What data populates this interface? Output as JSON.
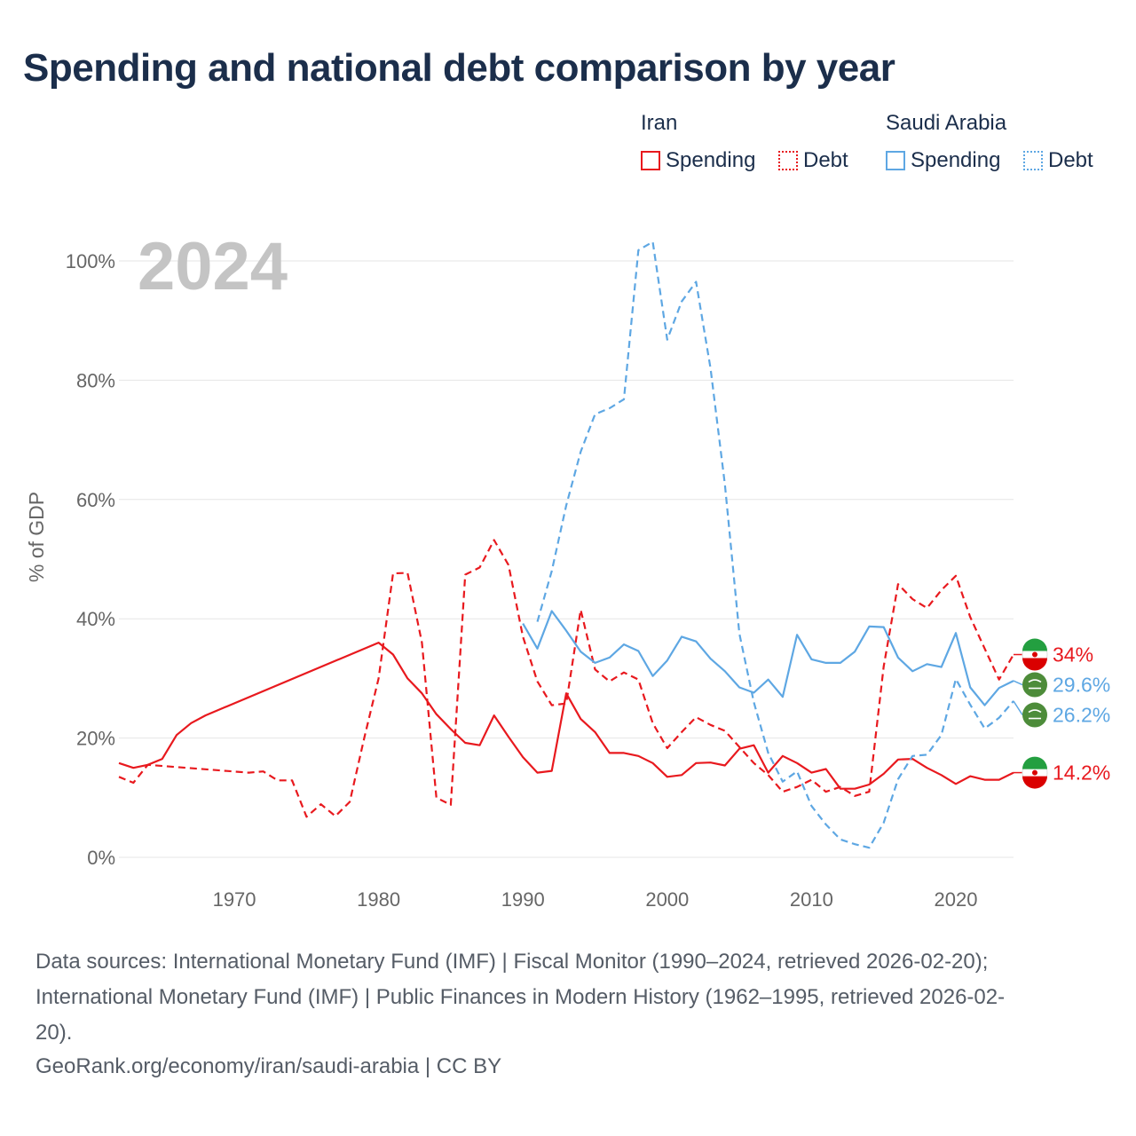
{
  "title": "Spending and national debt comparison by year",
  "legend": {
    "groups": [
      {
        "name": "Iran",
        "items": [
          {
            "label": "Spending",
            "style": "solid",
            "color": "#e8191e"
          },
          {
            "label": "Debt",
            "style": "dotted",
            "color": "#e8191e"
          }
        ]
      },
      {
        "name": "Saudi Arabia",
        "items": [
          {
            "label": "Spending",
            "style": "solid",
            "color": "#5ea7e3"
          },
          {
            "label": "Debt",
            "style": "dotted",
            "color": "#5ea7e3"
          }
        ]
      }
    ]
  },
  "year_watermark": "2024",
  "footer": {
    "line1": "Data sources: International Monetary Fund (IMF) | Fiscal Monitor (1990–2024, retrieved 2026-02-20);",
    "line2": "International Monetary Fund (IMF) | Public Finances in Modern History (1962–1995, retrieved 2026-02-",
    "line3": "20).",
    "line4": "GeoRank.org/economy/iran/saudi-arabia | CC BY"
  },
  "colors": {
    "iran": "#e8191e",
    "saudi": "#5ea7e3",
    "grid": "#e6e6e6",
    "axis_text": "#666666",
    "watermark": "#c4c4c4"
  },
  "chart_data": {
    "type": "line",
    "title": "Spending and national debt comparison by year",
    "xlabel": "",
    "ylabel": "% of GDP",
    "xlim": [
      1962,
      2024
    ],
    "ylim": [
      0,
      105
    ],
    "x_ticks": [
      1970,
      1980,
      1990,
      2000,
      2010,
      2020
    ],
    "x_tick_labels": [
      "1970",
      "1980",
      "1990",
      "2000",
      "2010",
      "2020"
    ],
    "y_ticks": [
      0,
      20,
      40,
      60,
      80,
      100
    ],
    "y_tick_labels": [
      "0%",
      "20%",
      "40%",
      "60%",
      "80%",
      "100%"
    ],
    "series": [
      {
        "name": "Iran Spending",
        "country": "Iran",
        "metric": "Spending",
        "color": "#e8191e",
        "dash": "solid",
        "end_label": "14.2%",
        "points": [
          [
            1962,
            15.8
          ],
          [
            1963,
            15.0
          ],
          [
            1964,
            15.5
          ],
          [
            1965,
            16.5
          ],
          [
            1966,
            20.5
          ],
          [
            1967,
            22.5
          ],
          [
            1968,
            23.8
          ],
          [
            1980,
            36.0
          ],
          [
            1981,
            34.0
          ],
          [
            1982,
            30.0
          ],
          [
            1983,
            27.5
          ],
          [
            1984,
            24.0
          ],
          [
            1985,
            21.5
          ],
          [
            1986,
            19.2
          ],
          [
            1987,
            18.8
          ],
          [
            1988,
            23.8
          ],
          [
            1989,
            20.2
          ],
          [
            1990,
            16.8
          ],
          [
            1991,
            14.2
          ],
          [
            1992,
            14.5
          ],
          [
            1993,
            27.5
          ],
          [
            1994,
            23.2
          ],
          [
            1995,
            21.0
          ],
          [
            1996,
            17.5
          ],
          [
            1997,
            17.5
          ],
          [
            1998,
            17.0
          ],
          [
            1999,
            15.8
          ],
          [
            2000,
            13.5
          ],
          [
            2001,
            13.8
          ],
          [
            2002,
            15.8
          ],
          [
            2003,
            15.9
          ],
          [
            2004,
            15.4
          ],
          [
            2005,
            18.2
          ],
          [
            2006,
            18.8
          ],
          [
            2007,
            14.2
          ],
          [
            2008,
            17.0
          ],
          [
            2009,
            15.8
          ],
          [
            2010,
            14.2
          ],
          [
            2011,
            14.8
          ],
          [
            2012,
            11.5
          ],
          [
            2013,
            11.5
          ],
          [
            2014,
            12.2
          ],
          [
            2015,
            14.0
          ],
          [
            2016,
            16.4
          ],
          [
            2017,
            16.5
          ],
          [
            2018,
            15.0
          ],
          [
            2019,
            13.8
          ],
          [
            2020,
            12.3
          ],
          [
            2021,
            13.6
          ],
          [
            2022,
            13.0
          ],
          [
            2023,
            13.0
          ],
          [
            2024,
            14.2
          ]
        ]
      },
      {
        "name": "Iran Debt",
        "country": "Iran",
        "metric": "Debt",
        "color": "#e8191e",
        "dash": "dashed",
        "end_label": "34%",
        "points": [
          [
            1962,
            13.5
          ],
          [
            1963,
            12.5
          ],
          [
            1964,
            15.5
          ],
          [
            1971,
            14.2
          ],
          [
            1972,
            14.4
          ],
          [
            1973,
            12.9
          ],
          [
            1974,
            12.9
          ],
          [
            1975,
            6.8
          ],
          [
            1976,
            8.9
          ],
          [
            1977,
            6.9
          ],
          [
            1978,
            9.3
          ],
          [
            1979,
            20.0
          ],
          [
            1980,
            30.0
          ],
          [
            1981,
            47.6
          ],
          [
            1982,
            47.7
          ],
          [
            1983,
            36.0
          ],
          [
            1984,
            10.0
          ],
          [
            1985,
            8.8
          ],
          [
            1986,
            47.4
          ],
          [
            1987,
            48.6
          ],
          [
            1988,
            53.2
          ],
          [
            1989,
            49.0
          ],
          [
            1990,
            37.0
          ],
          [
            1991,
            29.5
          ],
          [
            1992,
            25.5
          ],
          [
            1993,
            25.8
          ],
          [
            1994,
            41.5
          ],
          [
            1995,
            31.5
          ],
          [
            1996,
            29.5
          ],
          [
            1997,
            31.0
          ],
          [
            1998,
            29.8
          ],
          [
            1999,
            22.5
          ],
          [
            2000,
            18.3
          ],
          [
            2001,
            21.0
          ],
          [
            2002,
            23.5
          ],
          [
            2003,
            22.2
          ],
          [
            2004,
            21.2
          ],
          [
            2005,
            18.5
          ],
          [
            2006,
            15.8
          ],
          [
            2007,
            13.8
          ],
          [
            2008,
            11.0
          ],
          [
            2009,
            11.8
          ],
          [
            2010,
            13.0
          ],
          [
            2011,
            11.0
          ],
          [
            2012,
            11.8
          ],
          [
            2013,
            10.3
          ],
          [
            2014,
            11.0
          ],
          [
            2015,
            32.0
          ],
          [
            2016,
            45.8
          ],
          [
            2017,
            43.3
          ],
          [
            2018,
            41.8
          ],
          [
            2019,
            44.8
          ],
          [
            2020,
            47.2
          ],
          [
            2021,
            40.3
          ],
          [
            2022,
            35.0
          ],
          [
            2023,
            29.8
          ],
          [
            2024,
            34.0
          ]
        ]
      },
      {
        "name": "Saudi Arabia Spending",
        "country": "Saudi Arabia",
        "metric": "Spending",
        "color": "#5ea7e3",
        "dash": "solid",
        "end_label": "29.6%",
        "points": [
          [
            1990,
            39.2
          ],
          [
            1991,
            35.0
          ],
          [
            1992,
            41.3
          ],
          [
            1993,
            38.0
          ],
          [
            1994,
            34.5
          ],
          [
            1995,
            32.6
          ],
          [
            1996,
            33.5
          ],
          [
            1997,
            35.7
          ],
          [
            1998,
            34.6
          ],
          [
            1999,
            30.4
          ],
          [
            2000,
            33.0
          ],
          [
            2001,
            37.0
          ],
          [
            2002,
            36.2
          ],
          [
            2003,
            33.3
          ],
          [
            2004,
            31.2
          ],
          [
            2005,
            28.5
          ],
          [
            2006,
            27.6
          ],
          [
            2007,
            29.8
          ],
          [
            2008,
            26.9
          ],
          [
            2009,
            37.3
          ],
          [
            2010,
            33.2
          ],
          [
            2011,
            32.6
          ],
          [
            2012,
            32.6
          ],
          [
            2013,
            34.5
          ],
          [
            2014,
            38.7
          ],
          [
            2015,
            38.6
          ],
          [
            2016,
            33.5
          ],
          [
            2017,
            31.2
          ],
          [
            2018,
            32.4
          ],
          [
            2019,
            31.9
          ],
          [
            2020,
            37.6
          ],
          [
            2021,
            28.5
          ],
          [
            2022,
            25.5
          ],
          [
            2023,
            28.4
          ],
          [
            2024,
            29.6
          ]
        ]
      },
      {
        "name": "Saudi Arabia Debt",
        "country": "Saudi Arabia",
        "metric": "Debt",
        "color": "#5ea7e3",
        "dash": "dashed",
        "end_label": "26.2%",
        "points": [
          [
            1991,
            39.5
          ],
          [
            1992,
            48.0
          ],
          [
            1993,
            59.0
          ],
          [
            1994,
            68.0
          ],
          [
            1995,
            74.3
          ],
          [
            1996,
            75.3
          ],
          [
            1997,
            76.8
          ],
          [
            1998,
            101.8
          ],
          [
            1999,
            103.2
          ],
          [
            2000,
            86.8
          ],
          [
            2001,
            93.2
          ],
          [
            2002,
            96.5
          ],
          [
            2003,
            82.0
          ],
          [
            2004,
            62.5
          ],
          [
            2005,
            37.5
          ],
          [
            2006,
            26.0
          ],
          [
            2007,
            17.5
          ],
          [
            2008,
            12.7
          ],
          [
            2009,
            14.4
          ],
          [
            2010,
            8.6
          ],
          [
            2011,
            5.5
          ],
          [
            2012,
            3.0
          ],
          [
            2013,
            2.2
          ],
          [
            2014,
            1.6
          ],
          [
            2015,
            5.8
          ],
          [
            2016,
            13.1
          ],
          [
            2017,
            17.0
          ],
          [
            2018,
            17.2
          ],
          [
            2019,
            20.5
          ],
          [
            2020,
            29.9
          ],
          [
            2021,
            25.6
          ],
          [
            2022,
            21.6
          ],
          [
            2023,
            23.4
          ],
          [
            2024,
            26.2
          ]
        ]
      }
    ]
  }
}
